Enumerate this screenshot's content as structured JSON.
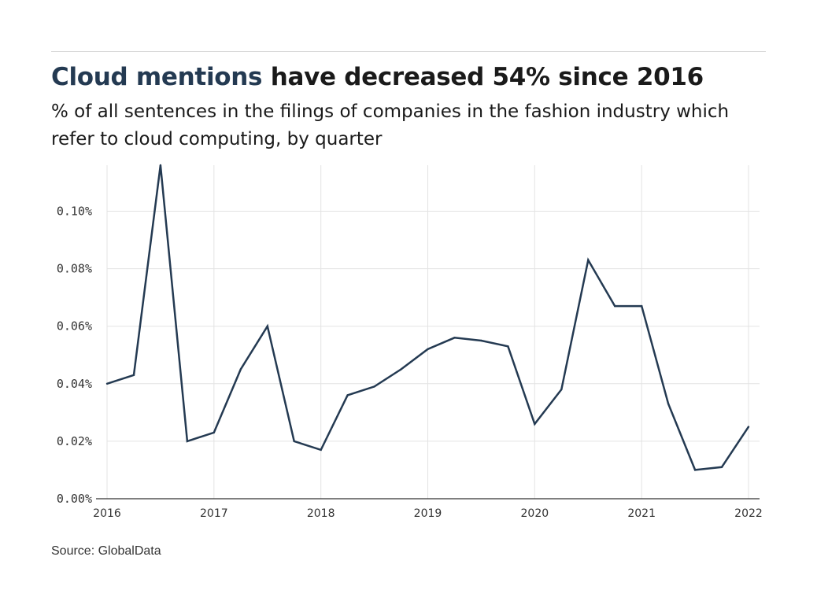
{
  "title": {
    "highlight": "Cloud mentions",
    "rest": "have decreased 54% since 2016"
  },
  "subtitle": "% of all sentences in the filings of companies in the fashion industry which refer to cloud computing, by quarter",
  "source": "Source: GlobalData",
  "colors": {
    "line": "#243a52",
    "highlight": "#243a52",
    "grid": "#e3e3e3"
  },
  "chart_data": {
    "type": "line",
    "title": "Cloud mentions have decreased 54% since 2016",
    "xlabel": "",
    "ylabel": "",
    "x": [
      "2016 Q1",
      "2016 Q2",
      "2016 Q3",
      "2016 Q4",
      "2017 Q1",
      "2017 Q2",
      "2017 Q3",
      "2017 Q4",
      "2018 Q1",
      "2018 Q2",
      "2018 Q3",
      "2018 Q4",
      "2019 Q1",
      "2019 Q2",
      "2019 Q3",
      "2019 Q4",
      "2020 Q1",
      "2020 Q2",
      "2020 Q3",
      "2020 Q4",
      "2021 Q1",
      "2021 Q2",
      "2021 Q3",
      "2021 Q4",
      "2022 Q1"
    ],
    "series": [
      {
        "name": "",
        "values": [
          0.04,
          0.043,
          0.116,
          0.02,
          0.023,
          0.045,
          0.06,
          0.02,
          0.017,
          0.036,
          0.039,
          0.045,
          0.052,
          0.056,
          0.055,
          0.053,
          0.026,
          0.038,
          0.083,
          0.067,
          0.067,
          0.033,
          0.01,
          0.011,
          0.025
        ]
      }
    ],
    "x_ticks": [
      "2016",
      "2017",
      "2018",
      "2019",
      "2020",
      "2021",
      "2022"
    ],
    "y_ticks": [
      0,
      0.02,
      0.04,
      0.06,
      0.08,
      0.1
    ],
    "y_tick_labels": [
      "0.00%",
      "0.02%",
      "0.04%",
      "0.06%",
      "0.08%",
      "0.10%"
    ],
    "ylim": [
      0,
      0.116
    ],
    "grid": true,
    "legend": "none"
  }
}
